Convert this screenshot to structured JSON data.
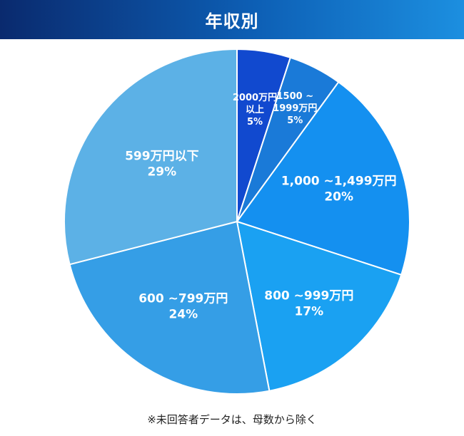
{
  "header": {
    "title": "年収別"
  },
  "footnote": "※未回答者データは、母数から除く",
  "chart_data": {
    "type": "pie",
    "title": "年収別",
    "slices": [
      {
        "label": "2000万円以上",
        "lines": [
          "2000万円",
          "以上",
          "5%"
        ],
        "value": 5,
        "color": "#1149cf"
      },
      {
        "label": "1500 ~ 1999万円",
        "lines": [
          "1500 ~",
          "1999万円",
          "5%"
        ],
        "value": 5,
        "color": "#1a7ad8"
      },
      {
        "label": "1,000 ~1,499万円",
        "lines": [
          "1,000 ~1,499万円",
          "20%"
        ],
        "value": 20,
        "color": "#1490f0"
      },
      {
        "label": "800 ~999万円",
        "lines": [
          "800 ~999万円",
          "17%"
        ],
        "value": 17,
        "color": "#1aa1f2"
      },
      {
        "label": "600 ~799万円",
        "lines": [
          "600 ~799万円",
          "24%"
        ],
        "value": 24,
        "color": "#359ee6"
      },
      {
        "label": "599万円以下",
        "lines": [
          "599万円以下",
          "29%"
        ],
        "value": 29,
        "color": "#5cb1e6"
      }
    ]
  }
}
